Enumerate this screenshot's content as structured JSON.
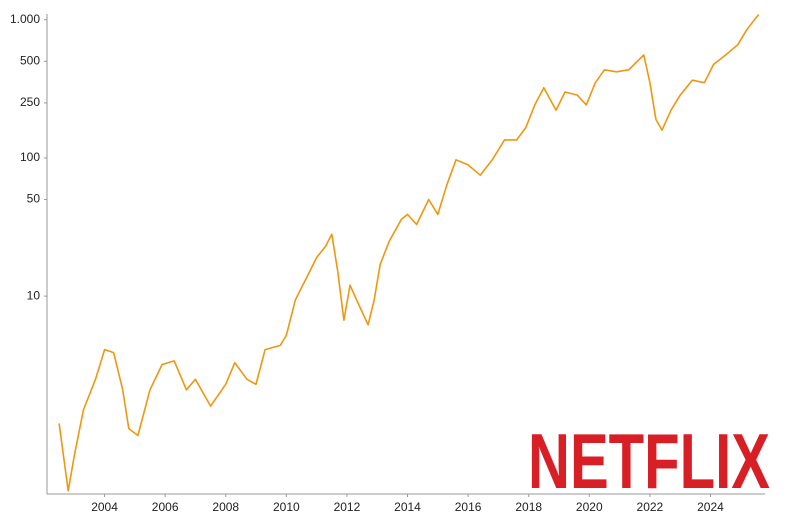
{
  "chart_data": {
    "type": "line",
    "yscale": "log",
    "logo": "NETFLIX",
    "x": [
      2002.5,
      2002.8,
      2003.0,
      2003.3,
      2003.7,
      2004.0,
      2004.3,
      2004.6,
      2004.8,
      2005.1,
      2005.5,
      2005.9,
      2006.3,
      2006.7,
      2007.0,
      2007.5,
      2008.0,
      2008.3,
      2008.7,
      2009.0,
      2009.3,
      2009.8,
      2010.0,
      2010.3,
      2010.7,
      2011.0,
      2011.3,
      2011.5,
      2011.7,
      2011.9,
      2012.1,
      2012.4,
      2012.7,
      2012.9,
      2013.1,
      2013.4,
      2013.8,
      2014.0,
      2014.3,
      2014.7,
      2015.0,
      2015.3,
      2015.6,
      2016.0,
      2016.4,
      2016.8,
      2017.2,
      2017.6,
      2017.9,
      2018.2,
      2018.5,
      2018.9,
      2019.2,
      2019.6,
      2019.9,
      2020.2,
      2020.5,
      2020.9,
      2021.3,
      2021.8,
      2022.0,
      2022.2,
      2022.4,
      2022.7,
      2023.0,
      2023.4,
      2023.8,
      2024.1,
      2024.5,
      2024.9,
      2025.2,
      2025.5,
      2025.6
    ],
    "series": [
      {
        "color": "#f0960f",
        "values": [
          1.2,
          0.39,
          0.7,
          1.5,
          2.5,
          4.1,
          3.9,
          2.1,
          1.1,
          0.98,
          2.1,
          3.2,
          3.4,
          2.1,
          2.5,
          1.6,
          2.3,
          3.3,
          2.5,
          2.3,
          4.1,
          4.4,
          5.2,
          9.4,
          14,
          19,
          23,
          28,
          15,
          6.7,
          12,
          8.6,
          6.2,
          9.4,
          17,
          25,
          36,
          39,
          33,
          50,
          39,
          64,
          97,
          89,
          75,
          97,
          135,
          135,
          165,
          242,
          322,
          222,
          300,
          285,
          242,
          350,
          434,
          420,
          434,
          556,
          350,
          190,
          159,
          222,
          285,
          365,
          350,
          474,
          556,
          658,
          847,
          1032,
          1090
        ]
      }
    ],
    "xlim": [
      2002.1,
      2025.8
    ],
    "xticks": [
      2004,
      2006,
      2008,
      2010,
      2012,
      2014,
      2016,
      2018,
      2020,
      2022,
      2024
    ],
    "ylim": [
      0.37,
      1100
    ],
    "yticks": [
      10,
      50,
      100,
      250,
      500,
      {
        "value": 1000,
        "label": "1.000"
      }
    ]
  }
}
